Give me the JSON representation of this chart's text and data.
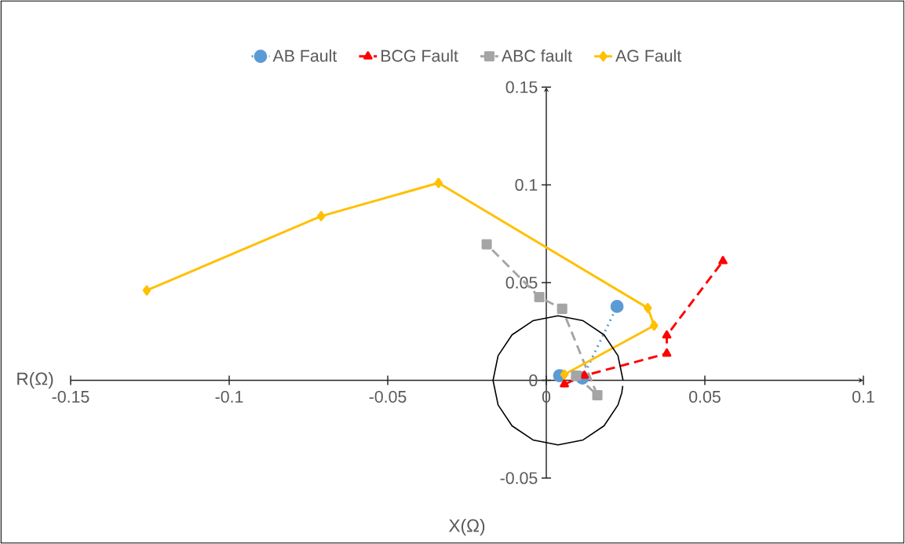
{
  "chart_data": {
    "type": "line",
    "xlabel": "X(Ω)",
    "ylabel": "R(Ω)",
    "xlim": [
      -0.15,
      0.1
    ],
    "ylim": [
      -0.05,
      0.15
    ],
    "xticks": [
      -0.15,
      -0.1,
      -0.05,
      0,
      0.05,
      0.1
    ],
    "yticks": [
      -0.05,
      0,
      0.05,
      0.1,
      0.15
    ],
    "legend": "top",
    "grid": false,
    "series": [
      {
        "name": "AB Fault",
        "color": "#5b9bd5",
        "marker": "circle",
        "line_style": "dotted",
        "x": [
          0.0042,
          0.0114,
          0.0223
        ],
        "values": [
          0.0024,
          0.0012,
          0.0378
        ]
      },
      {
        "name": "BCG Fault",
        "color": "#ff0000",
        "marker": "triangle",
        "line_style": "dashed",
        "x": [
          0.0057,
          0.012,
          0.038,
          0.038,
          0.0557
        ],
        "values": [
          -0.002,
          0.0024,
          0.0137,
          0.023,
          0.061
        ]
      },
      {
        "name": "ABC fault",
        "color": "#a5a5a5",
        "marker": "square",
        "line_style": "dashed",
        "x": [
          0.0094,
          0.0161,
          0.005,
          -0.0022,
          -0.0188
        ],
        "values": [
          0.0024,
          -0.0076,
          0.0366,
          0.0426,
          0.0696
        ]
      },
      {
        "name": "AG Fault",
        "color": "#ffc000",
        "marker": "diamond",
        "line_style": "solid",
        "x": [
          0.0057,
          0.034,
          0.032,
          -0.034,
          -0.071,
          -0.126
        ],
        "values": [
          0.003,
          0.028,
          0.037,
          0.101,
          0.084,
          0.046
        ]
      },
      {
        "color": "#000000",
        "marker": "none",
        "line_style": "solid",
        "x": [
          0.0242,
          0.0226,
          0.0182,
          0.0116,
          0.0037,
          -0.0042,
          -0.0108,
          -0.0152,
          -0.0168,
          -0.0152,
          -0.0108,
          -0.0042,
          0.0037,
          0.0116,
          0.0182,
          0.0226,
          0.0238,
          0.0241
        ],
        "values": [
          0,
          0.0126,
          0.0233,
          0.0305,
          0.033,
          0.0305,
          0.0233,
          0.0126,
          0,
          -0.0126,
          -0.0233,
          -0.0305,
          -0.033,
          -0.0305,
          -0.0233,
          -0.0126,
          -0.0064,
          -0.0029
        ]
      }
    ]
  }
}
